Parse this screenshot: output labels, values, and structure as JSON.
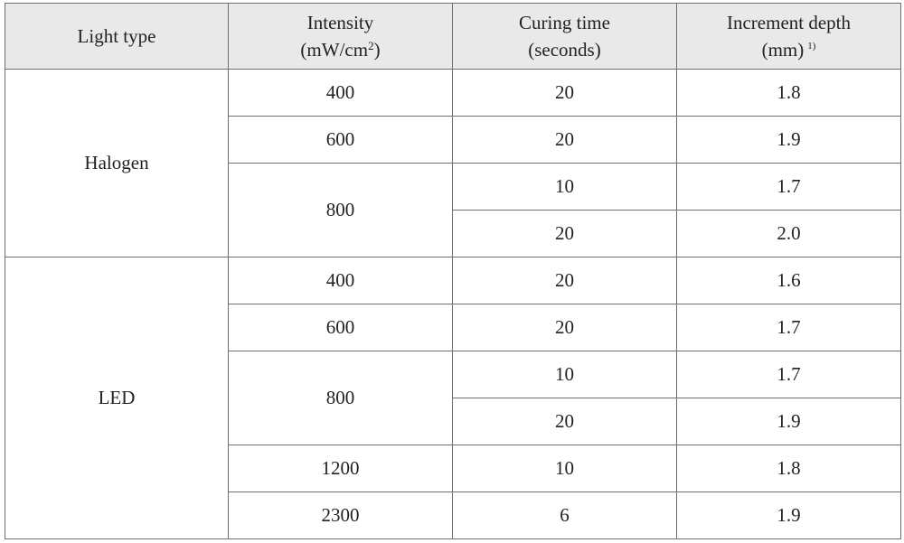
{
  "header": {
    "light_type": "Light type",
    "intensity_line1": "Intensity",
    "intensity_line2_pre": "(mW/cm",
    "intensity_sup": "2",
    "intensity_line2_post": ")",
    "curing_line1": "Curing time",
    "curing_line2": "(seconds)",
    "depth_line1": "Increment depth",
    "depth_line2": "(mm)",
    "depth_note": "1)"
  },
  "groups": [
    {
      "light_type": "Halogen",
      "intensities": [
        {
          "intensity": "400",
          "rows": [
            {
              "time": "20",
              "depth": "1.8"
            }
          ]
        },
        {
          "intensity": "600",
          "rows": [
            {
              "time": "20",
              "depth": "1.9"
            }
          ]
        },
        {
          "intensity": "800",
          "rows": [
            {
              "time": "10",
              "depth": "1.7"
            },
            {
              "time": "20",
              "depth": "2.0"
            }
          ]
        }
      ]
    },
    {
      "light_type": "LED",
      "intensities": [
        {
          "intensity": "400",
          "rows": [
            {
              "time": "20",
              "depth": "1.6"
            }
          ]
        },
        {
          "intensity": "600",
          "rows": [
            {
              "time": "20",
              "depth": "1.7"
            }
          ]
        },
        {
          "intensity": "800",
          "rows": [
            {
              "time": "10",
              "depth": "1.7"
            },
            {
              "time": "20",
              "depth": "1.9"
            }
          ]
        },
        {
          "intensity": "1200",
          "rows": [
            {
              "time": "10",
              "depth": "1.8"
            }
          ]
        },
        {
          "intensity": "2300",
          "rows": [
            {
              "time": "6",
              "depth": "1.9"
            }
          ]
        }
      ]
    }
  ]
}
